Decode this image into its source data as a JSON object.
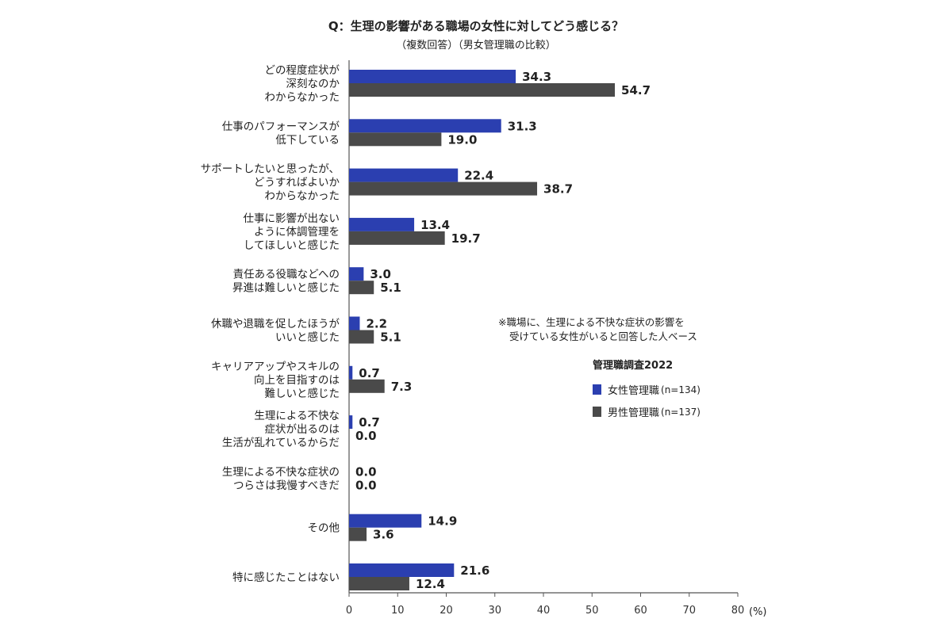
{
  "chart_data": {
    "type": "bar",
    "orientation": "horizontal",
    "title": "Q：生理の影響がある職場の女性に対してどう感じる？",
    "subtitle": "（複数回答）（男女管理職の比較）",
    "categories": [
      [
        "どの程度症状が",
        "深刻なのか",
        "わからなかった"
      ],
      [
        "仕事のパフォーマンスが",
        "低下している"
      ],
      [
        "サポートしたいと思ったが、",
        "どうすればよいか",
        "わからなかった"
      ],
      [
        "仕事に影響が出ない",
        "ように体調管理を",
        "してほしいと感じた"
      ],
      [
        "責任ある役職などへの",
        "昇進は難しいと感じた"
      ],
      [
        "休職や退職を促したほうが",
        "いいと感じた"
      ],
      [
        "キャリアアップやスキルの",
        "向上を目指すのは",
        "難しいと感じた"
      ],
      [
        "生理による不快な",
        "症状が出るのは",
        "生活が乱れているからだ"
      ],
      [
        "生理による不快な症状の",
        "つらさは我慢すべきだ"
      ],
      [
        "その他"
      ],
      [
        "特に感じたことはない"
      ]
    ],
    "series": [
      {
        "name": "女性管理職",
        "n_label": "(n=134)",
        "color": "#2b3fb0",
        "values": [
          34.3,
          31.3,
          22.4,
          13.4,
          3.0,
          2.2,
          0.7,
          0.7,
          0.0,
          14.9,
          21.6
        ],
        "labels": [
          "34.3",
          "31.3",
          "22.4",
          "13.4",
          "3.0",
          "2.2",
          "0.7",
          "0.7",
          "0.0",
          "14.9",
          "21.6"
        ]
      },
      {
        "name": "男性管理職",
        "n_label": "(n=137)",
        "color": "#4a4a4a",
        "values": [
          54.7,
          19.0,
          38.7,
          19.7,
          5.1,
          5.1,
          7.3,
          0.0,
          0.0,
          3.6,
          12.4
        ],
        "labels": [
          "54.7",
          "19.0",
          "38.7",
          "19.7",
          "5.1",
          "5.1",
          "7.3",
          "0.0",
          "0.0",
          "3.6",
          "12.4"
        ]
      }
    ],
    "xlim": [
      0,
      80
    ],
    "xticks": [
      0,
      10,
      20,
      30,
      40,
      50,
      60,
      70,
      80
    ],
    "xunit": "(%)",
    "legend_title": "管理職調査2022",
    "legend_placement": "right",
    "note": [
      "※職場に、生理による不快な症状の影響を",
      "受けている女性がいると回答した人ベース"
    ],
    "grid": false
  }
}
